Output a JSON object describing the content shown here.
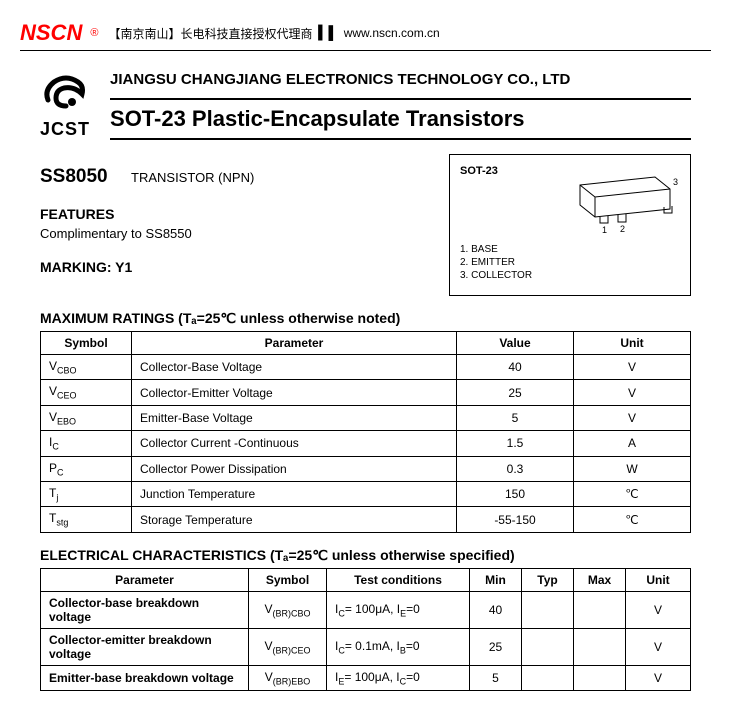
{
  "header": {
    "logo": "NSCN",
    "reg": "®",
    "cn_text": "【南京南山】长电科技直接授权代理商",
    "sep": "▍▌",
    "url": "www.nscn.com.cn"
  },
  "company": {
    "jcst": "JCST",
    "name": "JIANGSU CHANGJIANG ELECTRONICS TECHNOLOGY CO., LTD",
    "product_title": "SOT-23 Plastic-Encapsulate Transistors"
  },
  "part": {
    "number": "SS8050",
    "type": "TRANSISTOR (NPN)"
  },
  "features": {
    "heading": "FEATURES",
    "text": "Complimentary to SS8550"
  },
  "marking": {
    "label": "MARKING: Y1"
  },
  "package": {
    "name": "SOT-23",
    "pins": [
      "1. BASE",
      "2. EMITTER",
      "3. COLLECTOR"
    ]
  },
  "max_ratings": {
    "heading": "MAXIMUM RATINGS (Tₐ=25℃ unless otherwise noted)",
    "columns": [
      "Symbol",
      "Parameter",
      "Value",
      "Unit"
    ],
    "rows": [
      {
        "sym": "V",
        "sub": "CBO",
        "param": "Collector-Base Voltage",
        "val": "40",
        "unit": "V"
      },
      {
        "sym": "V",
        "sub": "CEO",
        "param": "Collector-Emitter Voltage",
        "val": "25",
        "unit": "V"
      },
      {
        "sym": "V",
        "sub": "EBO",
        "param": "Emitter-Base Voltage",
        "val": "5",
        "unit": "V"
      },
      {
        "sym": "I",
        "sub": "C",
        "param": "Collector Current -Continuous",
        "val": "1.5",
        "unit": "A"
      },
      {
        "sym": "P",
        "sub": "C",
        "param": "Collector Power Dissipation",
        "val": "0.3",
        "unit": "W"
      },
      {
        "sym": "T",
        "sub": "j",
        "param": "Junction Temperature",
        "val": "150",
        "unit": "℃"
      },
      {
        "sym": "T",
        "sub": "stg",
        "param": "Storage Temperature",
        "val": "-55-150",
        "unit": "℃"
      }
    ]
  },
  "elec": {
    "heading": "ELECTRICAL CHARACTERISTICS (Tₐ=25℃ unless otherwise specified)",
    "columns": [
      "Parameter",
      "Symbol",
      "Test conditions",
      "Min",
      "Typ",
      "Max",
      "Unit"
    ],
    "rows": [
      {
        "param": "Collector-base breakdown voltage",
        "sym": "V",
        "sub": "(BR)CBO",
        "cond": "I",
        "condsub": "C",
        "condrest": "= 100μA, I",
        "condsub2": "E",
        "condend": "=0",
        "min": "40",
        "typ": "",
        "max": "",
        "unit": "V"
      },
      {
        "param": "Collector-emitter breakdown voltage",
        "sym": "V",
        "sub": "(BR)CEO",
        "cond": "I",
        "condsub": "C",
        "condrest": "= 0.1mA, I",
        "condsub2": "B",
        "condend": "=0",
        "min": "25",
        "typ": "",
        "max": "",
        "unit": "V"
      },
      {
        "param": "Emitter-base breakdown voltage",
        "sym": "V",
        "sub": "(BR)EBO",
        "cond": "I",
        "condsub": "E",
        "condrest": "= 100μA, I",
        "condsub2": "C",
        "condend": "=0",
        "min": "5",
        "typ": "",
        "max": "",
        "unit": "V"
      }
    ]
  }
}
